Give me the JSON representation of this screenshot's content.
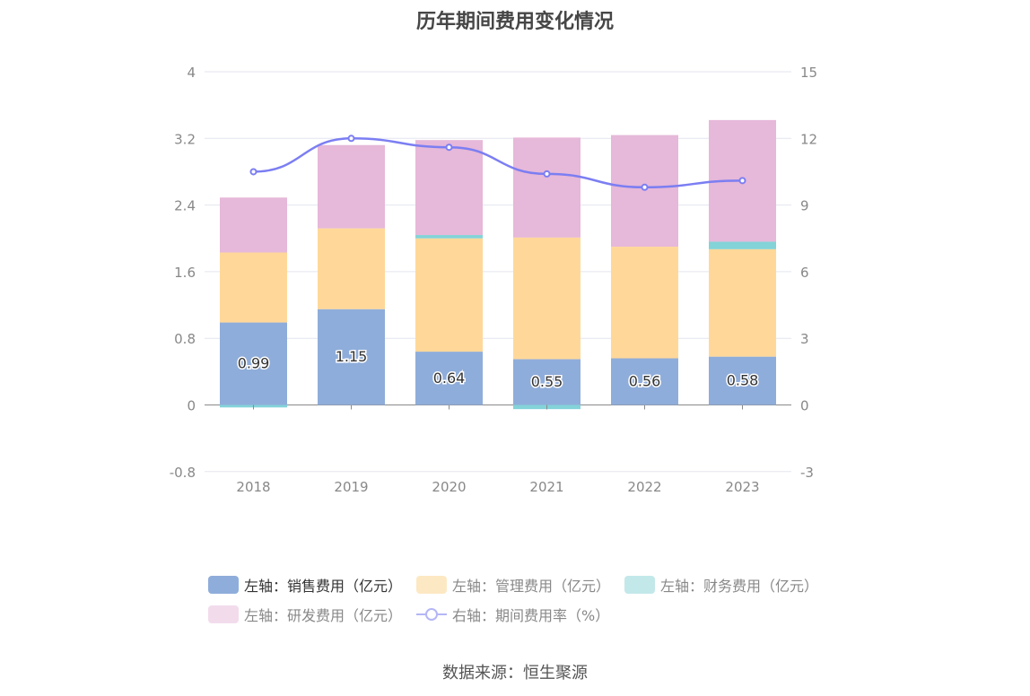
{
  "chart_data": {
    "type": "bar",
    "title": "历年期间费用变化情况",
    "categories": [
      "2018",
      "2019",
      "2020",
      "2021",
      "2022",
      "2023"
    ],
    "left_axis": {
      "min": -0.8,
      "max": 4,
      "ticks": [
        "4",
        "3.2",
        "2.4",
        "1.6",
        "0.8",
        "0",
        "-0.8"
      ]
    },
    "right_axis": {
      "min": -3,
      "max": 15,
      "ticks": [
        "15",
        "12",
        "9",
        "6",
        "3",
        "0",
        "-3"
      ]
    },
    "series": [
      {
        "name": "左轴：销售费用（亿元）",
        "type": "bar",
        "stacked": true,
        "color": "#8fadda",
        "values": [
          0.99,
          1.15,
          0.64,
          0.55,
          0.56,
          0.58
        ],
        "labels": [
          "0.99",
          "1.15",
          "0.64",
          "0.55",
          "0.56",
          "0.58"
        ]
      },
      {
        "name": "左轴：管理费用（亿元）",
        "type": "bar",
        "stacked": true,
        "color": "#ffd899",
        "values": [
          0.84,
          0.97,
          1.36,
          1.46,
          1.34,
          1.29
        ]
      },
      {
        "name": "左轴：财务费用（亿元）",
        "type": "bar",
        "stacked": true,
        "color": "#83d3d8",
        "values": [
          -0.03,
          0.0,
          0.04,
          -0.05,
          0.0,
          0.09
        ]
      },
      {
        "name": "左轴：研发费用（亿元）",
        "type": "bar",
        "stacked": true,
        "color": "#e6b8d9",
        "values": [
          0.66,
          1.0,
          1.14,
          1.2,
          1.34,
          1.46
        ]
      },
      {
        "name": "右轴：期间费用率（%）",
        "type": "line",
        "axis": "right",
        "color": "#7b7ef2",
        "values": [
          10.5,
          12.0,
          11.6,
          10.4,
          9.8,
          10.1
        ]
      }
    ],
    "legend_position": "bottom"
  },
  "legend": [
    {
      "label": "左轴：销售费用（亿元）",
      "color": "#8fadda",
      "kind": "box",
      "text_color": "#333333"
    },
    {
      "label": "左轴：管理费用（亿元）",
      "color": "#fde8c4",
      "kind": "box",
      "text_color": "#888888"
    },
    {
      "label": "左轴：财务费用（亿元）",
      "color": "#c3e8ea",
      "kind": "box",
      "text_color": "#888888"
    },
    {
      "label": "左轴：研发费用（亿元）",
      "color": "#f2dcec",
      "kind": "box",
      "text_color": "#888888"
    },
    {
      "label": "右轴：期间费用率（%）",
      "color": "#b4b6f6",
      "kind": "line",
      "text_color": "#888888"
    }
  ],
  "source": "数据来源：恒生聚源"
}
